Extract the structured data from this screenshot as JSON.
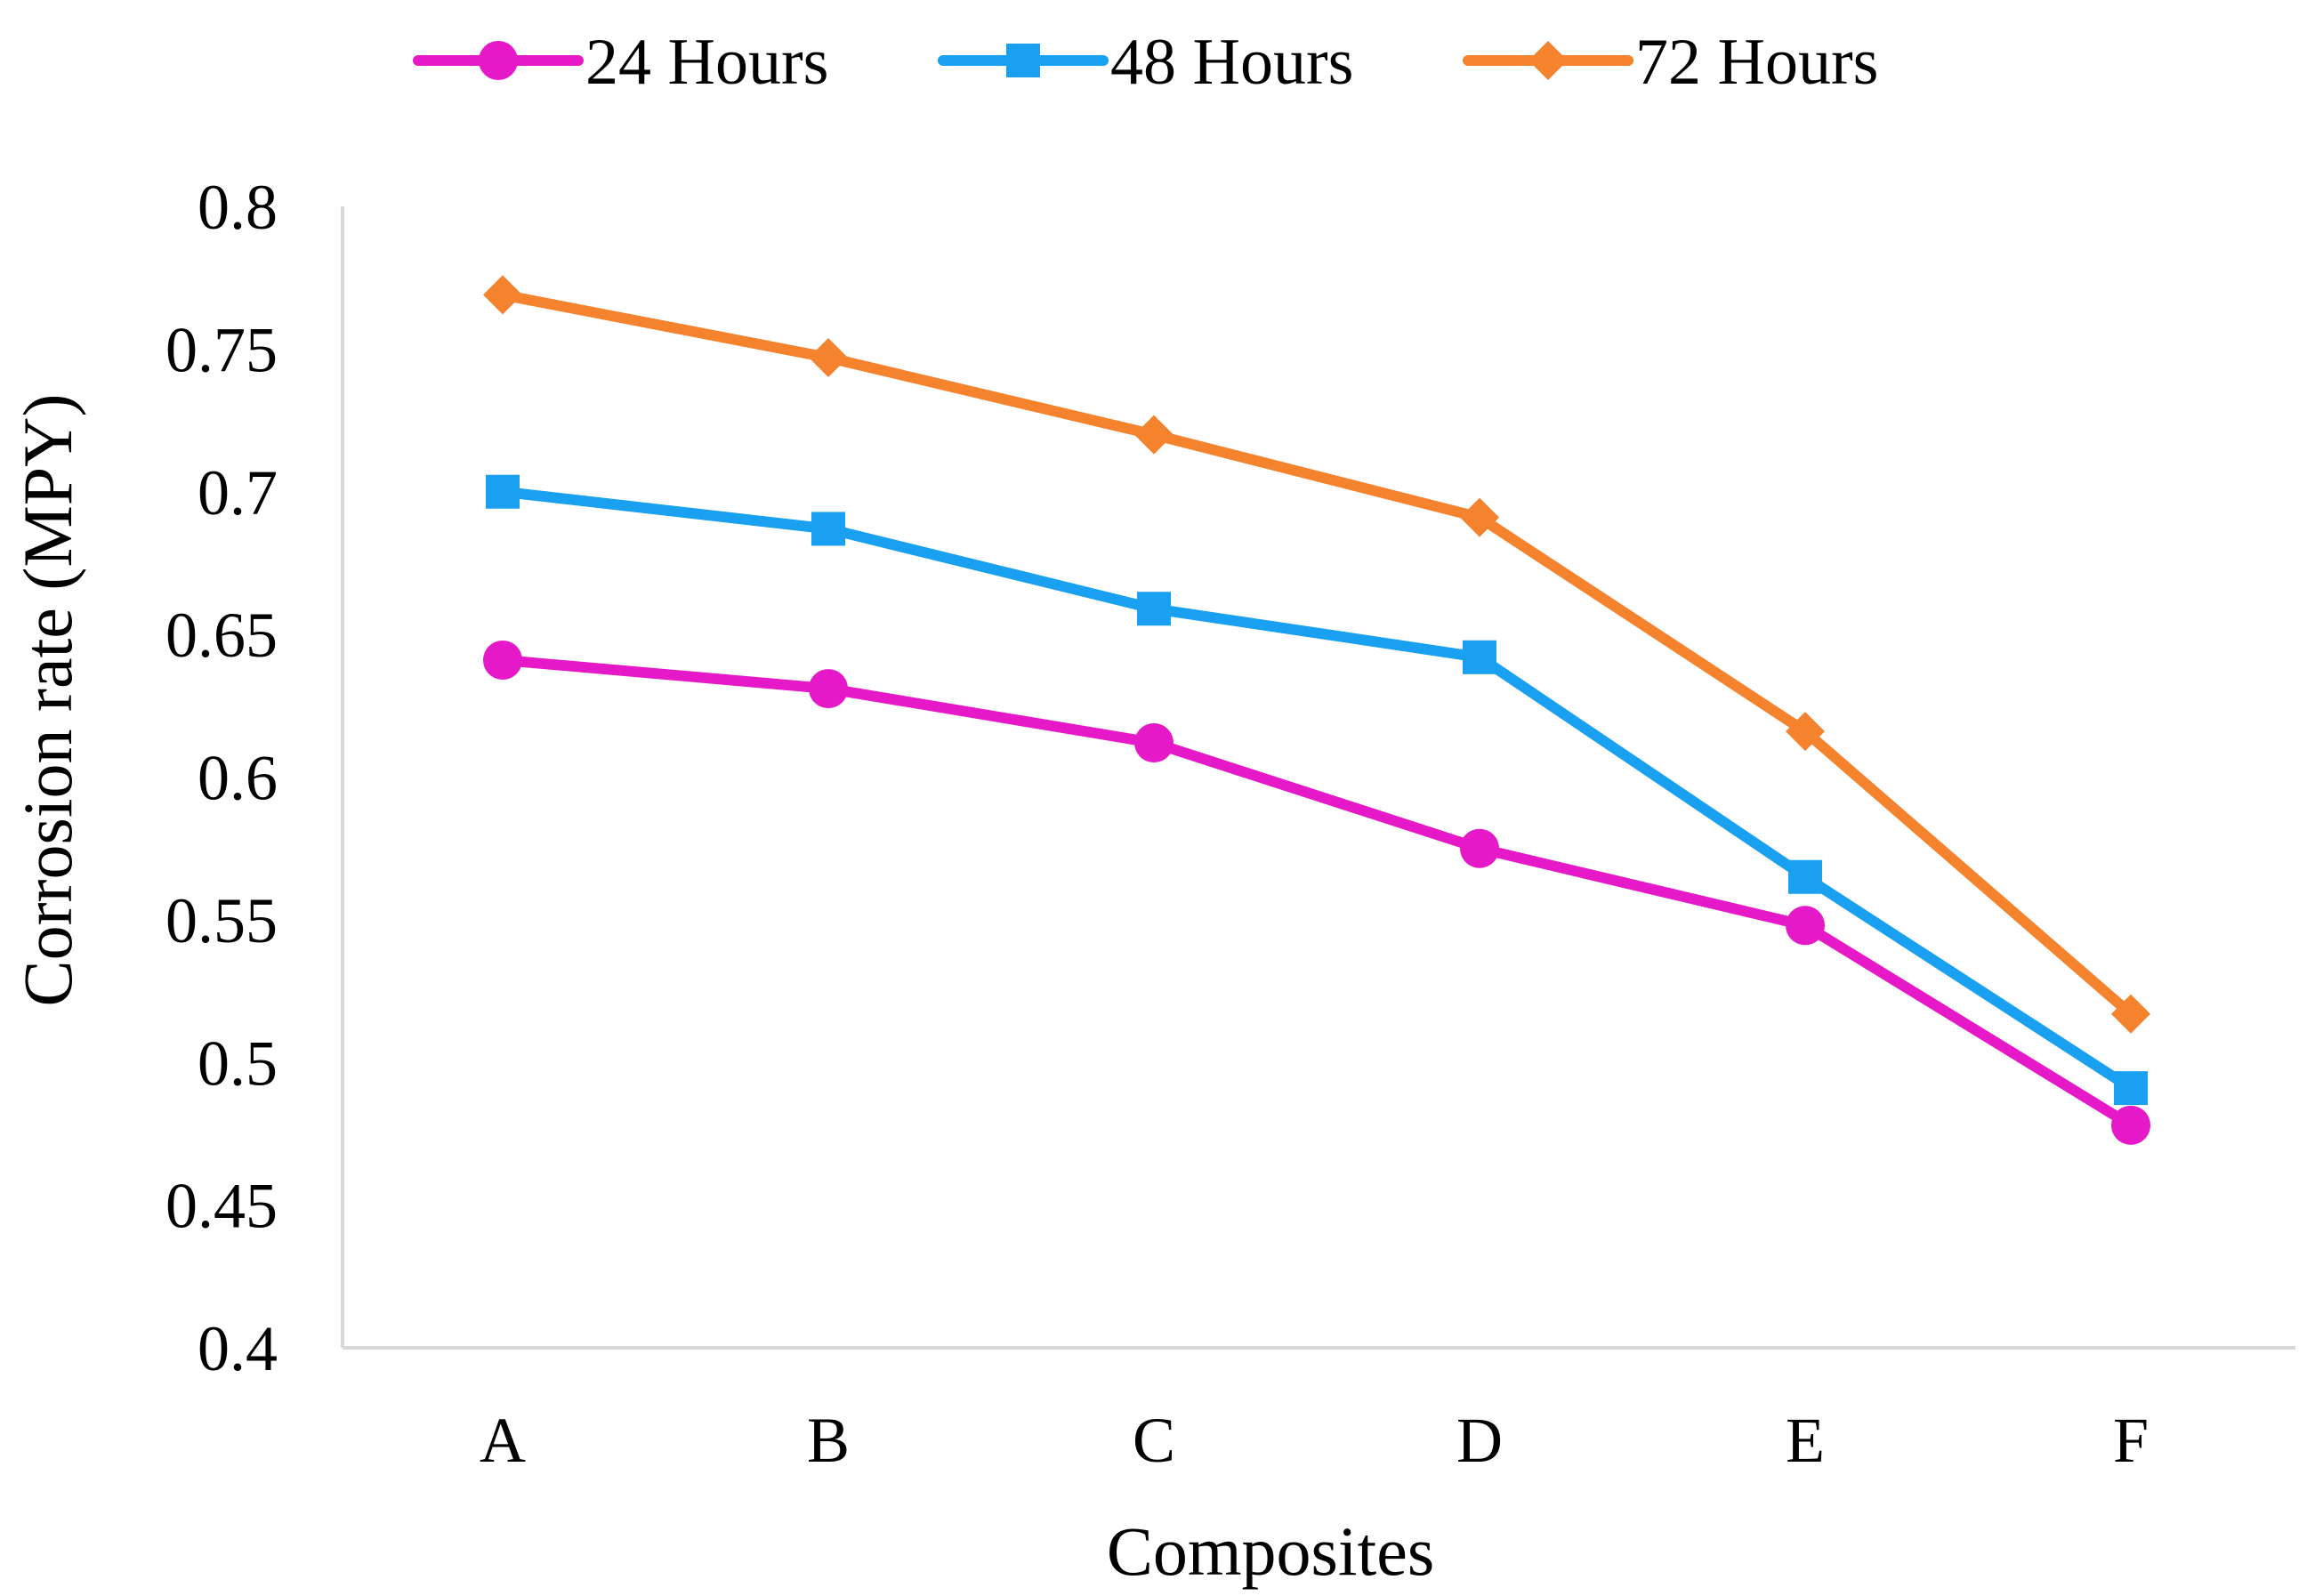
{
  "chart_data": {
    "type": "line",
    "title": "",
    "xlabel": "Composites",
    "ylabel": "Corrosion  rate (MPY)",
    "categories": [
      "A",
      "B",
      "C",
      "D",
      "E",
      "F"
    ],
    "ylim": [
      0.4,
      0.8
    ],
    "yticks": [
      0.4,
      0.45,
      0.5,
      0.55,
      0.6,
      0.65,
      0.7,
      0.75,
      0.8
    ],
    "ytick_labels": [
      "0.4",
      "0.45",
      "0.5",
      "0.55",
      "0.6",
      "0.65",
      "0.7",
      "0.75",
      "0.8"
    ],
    "grid": false,
    "legend_position": "top",
    "series": [
      {
        "name": "24 Hours",
        "color": "#e619c8",
        "marker": "circle",
        "values": [
          0.641,
          0.631,
          0.612,
          0.575,
          0.548,
          0.478
        ]
      },
      {
        "name": "48 Hours",
        "color": "#1aa0f0",
        "marker": "square",
        "values": [
          0.7,
          0.687,
          0.659,
          0.642,
          0.565,
          0.491
        ]
      },
      {
        "name": "72 Hours",
        "color": "#f5822d",
        "marker": "diamond",
        "values": [
          0.769,
          0.747,
          0.72,
          0.691,
          0.616,
          0.517
        ]
      }
    ]
  }
}
